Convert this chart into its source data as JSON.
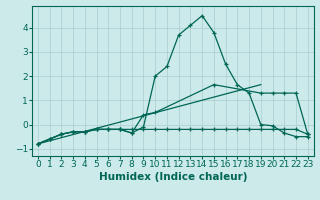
{
  "xlabel": "Humidex (Indice chaleur)",
  "ylabel": "",
  "xlim": [
    -0.5,
    23.5
  ],
  "ylim": [
    -1.3,
    4.9
  ],
  "background_color": "#cceaea",
  "grid_color": "#aacccc",
  "line_color": "#006655",
  "line1_x": [
    0,
    1,
    2,
    3,
    4,
    5,
    6,
    7,
    8,
    9,
    10,
    11,
    12,
    13,
    14,
    15,
    16,
    17,
    18,
    19,
    20,
    21,
    22,
    23
  ],
  "line1_y": [
    -0.8,
    -0.6,
    -0.4,
    -0.3,
    -0.3,
    -0.2,
    -0.2,
    -0.2,
    -0.35,
    -0.1,
    2.0,
    2.4,
    3.7,
    4.1,
    4.5,
    3.8,
    2.5,
    1.65,
    1.3,
    0.0,
    -0.05,
    -0.35,
    -0.5,
    -0.5
  ],
  "line2_x": [
    0,
    1,
    2,
    3,
    4,
    5,
    6,
    7,
    8,
    9,
    10,
    11,
    12,
    13,
    14,
    15,
    16,
    17,
    18,
    19,
    20,
    21,
    22,
    23
  ],
  "line2_y": [
    -0.8,
    -0.6,
    -0.4,
    -0.3,
    -0.3,
    -0.2,
    -0.2,
    -0.2,
    -0.2,
    -0.2,
    -0.2,
    -0.2,
    -0.2,
    -0.2,
    -0.2,
    -0.2,
    -0.2,
    -0.2,
    -0.2,
    -0.2,
    -0.2,
    -0.2,
    -0.2,
    -0.4
  ],
  "line3_x": [
    0,
    2,
    3,
    4,
    5,
    6,
    7,
    8,
    9,
    10,
    15,
    19,
    20,
    21,
    22,
    23
  ],
  "line3_y": [
    -0.8,
    -0.4,
    -0.3,
    -0.3,
    -0.2,
    -0.2,
    -0.2,
    -0.35,
    0.4,
    0.5,
    1.65,
    1.3,
    1.3,
    1.3,
    1.3,
    -0.4
  ],
  "line4_x": [
    0,
    19
  ],
  "line4_y": [
    -0.8,
    1.65
  ],
  "yticks": [
    -1,
    0,
    1,
    2,
    3,
    4
  ],
  "xticks": [
    0,
    1,
    2,
    3,
    4,
    5,
    6,
    7,
    8,
    9,
    10,
    11,
    12,
    13,
    14,
    15,
    16,
    17,
    18,
    19,
    20,
    21,
    22,
    23
  ],
  "tick_fontsize": 6.5,
  "label_fontsize": 7.5
}
